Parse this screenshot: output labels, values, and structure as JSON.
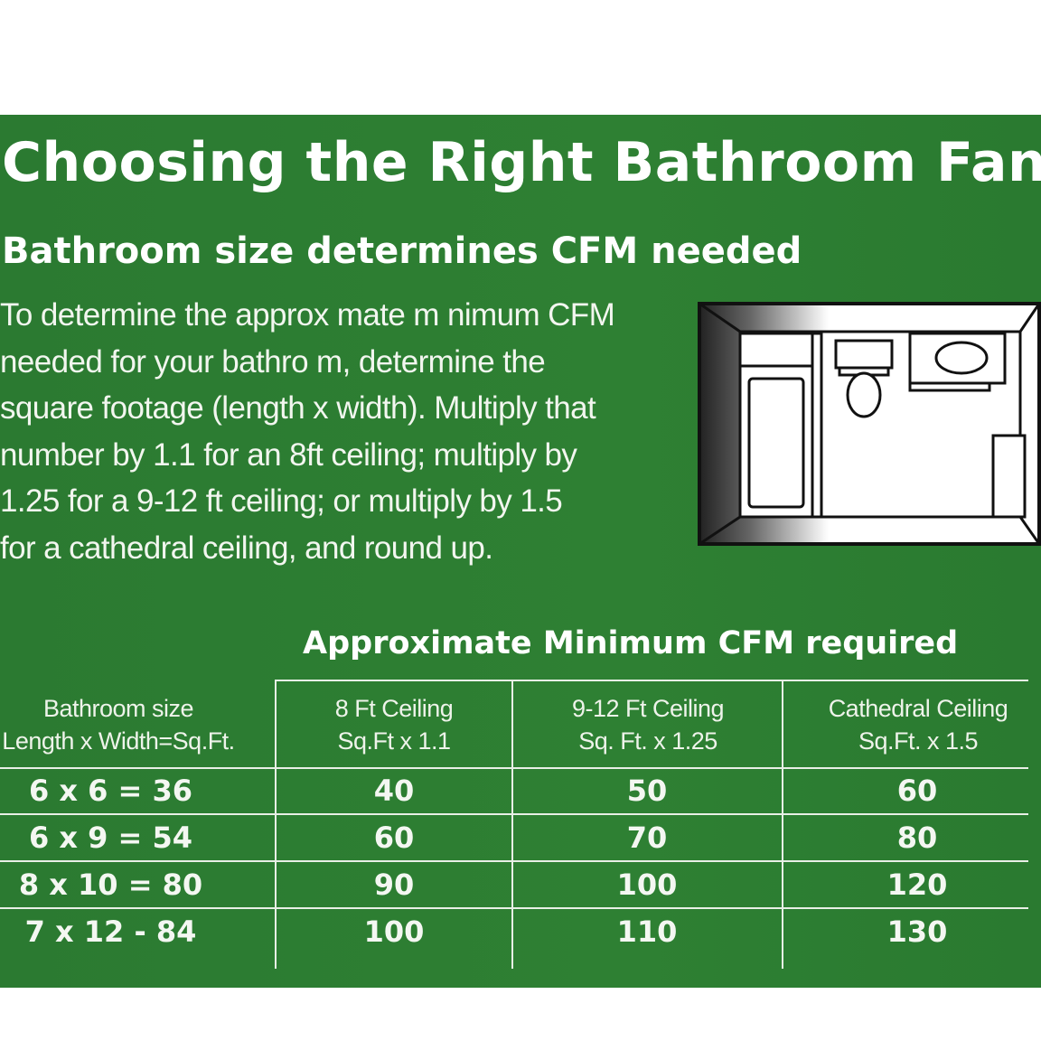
{
  "title": "Choosing the Right Bathroom Fan",
  "subtitle": "Bathroom size determines CFM needed",
  "paragraph_lines": [
    "To determine the approx mate m nimum CFM",
    "needed for your bathro  m, determine the",
    "square footage (length x width). Multiply that",
    "number by 1.1 for an 8ft ceiling; multiply by",
    "1.25 for a 9-12 ft ceiling; or multiply by 1.5",
    "for a cathedral ceiling, and round up."
  ],
  "illustration": "bathroom-floor-plan",
  "colors": {
    "background": "#2b7a31",
    "text": "#ffffff"
  },
  "table": {
    "title": "Approximate Minimum CFM required",
    "headers": [
      [
        "Bathroom size",
        "Length x Width=Sq.Ft."
      ],
      [
        "8 Ft Ceiling",
        "Sq.Ft x 1.1"
      ],
      [
        "9-12 Ft Ceiling",
        "Sq. Ft. x 1.25"
      ],
      [
        "Cathedral Ceiling",
        "Sq.Ft. x 1.5"
      ]
    ],
    "rows": [
      [
        "6 x 6 = 36",
        "40",
        "50",
        "60"
      ],
      [
        "6 x 9 = 54",
        "60",
        "70",
        "80"
      ],
      [
        "8 x 10 = 80",
        "90",
        "100",
        "120"
      ],
      [
        "7 x 12 - 84",
        "100",
        "110",
        "130"
      ]
    ]
  }
}
